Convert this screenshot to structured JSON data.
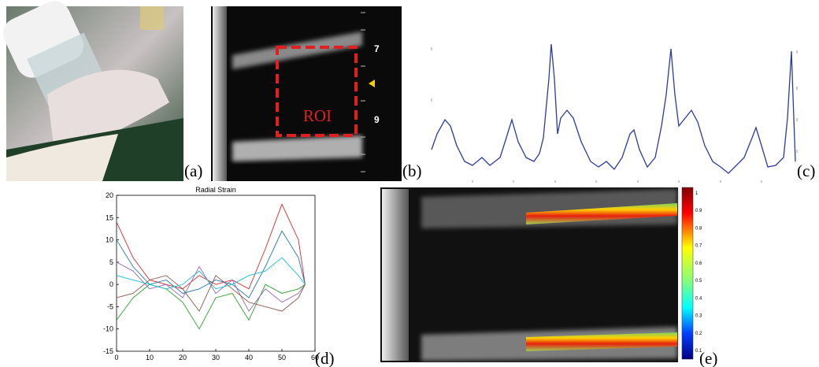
{
  "panels": {
    "a": {
      "label": "(a)"
    },
    "b": {
      "label": "(b)",
      "roi": "ROI",
      "depth_marks": [
        "7",
        "9"
      ]
    },
    "c": {
      "label": "(c)"
    },
    "d": {
      "label": "(d)"
    },
    "e": {
      "label": "(e)",
      "colorbar_labels": [
        "1",
        "0.9",
        "0.8",
        "0.7",
        "0.6",
        "0.5",
        "0.4",
        "0.3",
        "0.2",
        "0.1"
      ]
    }
  },
  "chart_data": {
    "type": "line",
    "title": "Radial Strain",
    "x": [
      0,
      5,
      10,
      15,
      20,
      25,
      30,
      35,
      40,
      45,
      50,
      55,
      57
    ],
    "series": [
      {
        "color": "#d62728",
        "values": [
          14,
          6,
          1,
          0,
          -1,
          2,
          0,
          1,
          -1,
          8,
          18,
          10,
          0
        ]
      },
      {
        "color": "#1f77b4",
        "values": [
          10,
          4,
          0,
          1,
          -2,
          -1,
          1,
          0,
          -3,
          4,
          12,
          6,
          0
        ]
      },
      {
        "color": "#2ca02c",
        "values": [
          -8,
          -3,
          0,
          -1,
          -4,
          -10,
          -3,
          -2,
          -8,
          0,
          -2,
          -1,
          0
        ]
      },
      {
        "color": "#9467bd",
        "values": [
          5,
          3,
          -1,
          0,
          -3,
          4,
          -2,
          1,
          -6,
          -1,
          -4,
          -2,
          0
        ]
      },
      {
        "color": "#8c564b",
        "values": [
          -3,
          -2,
          1,
          2,
          -1,
          -6,
          2,
          -1,
          -4,
          -5,
          -6,
          -3,
          0
        ]
      },
      {
        "color": "#17becf",
        "values": [
          2,
          1,
          0,
          -1,
          0,
          3,
          -1,
          0,
          2,
          3,
          6,
          2,
          0
        ]
      }
    ],
    "xlim": [
      0,
      60
    ],
    "ylim": [
      -15,
      20
    ],
    "xticks": [
      0,
      10,
      20,
      30,
      40,
      50,
      60
    ],
    "yticks": [
      -15,
      -10,
      -5,
      0,
      5,
      10,
      15,
      20
    ]
  }
}
